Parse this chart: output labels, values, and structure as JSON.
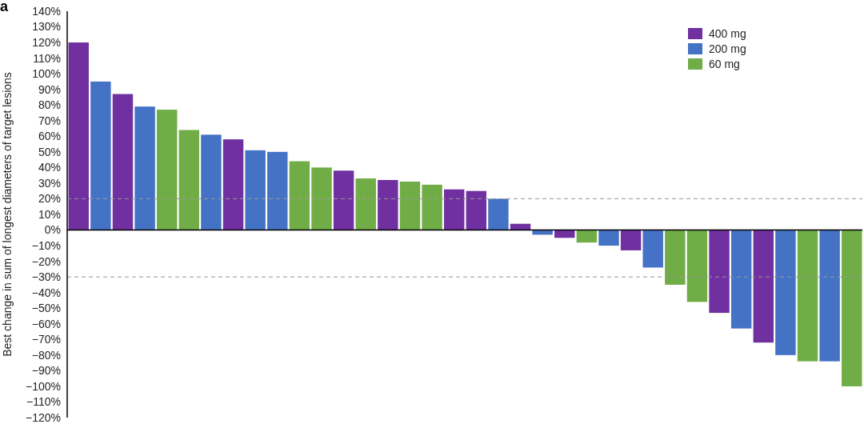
{
  "chart_data": {
    "type": "bar",
    "annotations": [
      "a"
    ],
    "ylabel": "Best change in sum of longest diameters of target lesions",
    "categories": [
      null,
      null,
      null,
      null,
      null,
      null,
      null,
      null,
      null,
      null,
      null,
      null,
      null,
      null,
      null,
      null,
      null,
      null,
      null,
      null,
      null,
      null,
      null,
      null,
      null,
      null,
      null,
      null,
      null,
      null,
      null,
      null,
      null,
      null,
      null,
      null
    ],
    "series": [
      {
        "name": "400 mg",
        "color": "#7030a0",
        "values": [
          120,
          null,
          87,
          null,
          null,
          null,
          null,
          58,
          null,
          null,
          null,
          null,
          38,
          null,
          32,
          null,
          null,
          26,
          25,
          null,
          4,
          null,
          -5,
          null,
          null,
          -13,
          null,
          null,
          null,
          -53,
          null,
          -72,
          null,
          null,
          null,
          null
        ]
      },
      {
        "name": "200 mg",
        "color": "#4472c4",
        "values": [
          null,
          95,
          null,
          79,
          null,
          null,
          61,
          null,
          51,
          50,
          null,
          null,
          null,
          null,
          null,
          null,
          null,
          null,
          null,
          20,
          null,
          -3,
          null,
          null,
          -10,
          null,
          -24,
          null,
          null,
          null,
          -63,
          null,
          -80,
          null,
          -84,
          null
        ]
      },
      {
        "name": "60 mg",
        "color": "#70ad47",
        "values": [
          null,
          null,
          null,
          null,
          77,
          64,
          null,
          null,
          null,
          null,
          44,
          40,
          null,
          33,
          null,
          31,
          29,
          null,
          null,
          null,
          null,
          null,
          null,
          -8,
          null,
          null,
          null,
          -35,
          -46,
          null,
          null,
          null,
          null,
          -84,
          null,
          -100
        ]
      }
    ],
    "ylim": [
      -120,
      140
    ],
    "yticks": [
      {
        "value": -120,
        "label": "−120%"
      },
      {
        "value": -110,
        "label": "−110%"
      },
      {
        "value": -100,
        "label": "−100%"
      },
      {
        "value": -90,
        "label": "−90%"
      },
      {
        "value": -80,
        "label": "−80%"
      },
      {
        "value": -70,
        "label": "−70%"
      },
      {
        "value": -60,
        "label": "−60%"
      },
      {
        "value": -50,
        "label": "−50%"
      },
      {
        "value": -40,
        "label": "−40%"
      },
      {
        "value": -30,
        "label": "−30%"
      },
      {
        "value": -20,
        "label": "−20%"
      },
      {
        "value": -10,
        "label": "−10%"
      },
      {
        "value": 0,
        "label": "0%"
      },
      {
        "value": 10,
        "label": "10%"
      },
      {
        "value": 20,
        "label": "20%"
      },
      {
        "value": 30,
        "label": "30%"
      },
      {
        "value": 40,
        "label": "40%"
      },
      {
        "value": 50,
        "label": "50%"
      },
      {
        "value": 60,
        "label": "60%"
      },
      {
        "value": 70,
        "label": "70%"
      },
      {
        "value": 80,
        "label": "80%"
      },
      {
        "value": 90,
        "label": "90%"
      },
      {
        "value": 100,
        "label": "100%"
      },
      {
        "value": 110,
        "label": "110%"
      },
      {
        "value": 120,
        "label": "120%"
      },
      {
        "value": 130,
        "label": "130%"
      },
      {
        "value": 140,
        "label": "140%"
      }
    ],
    "ref_lines": [
      {
        "axis": "y",
        "value": 20,
        "color": "#999999",
        "line_style": "dashed"
      },
      {
        "axis": "y",
        "value": -30,
        "color": "#999999",
        "line_style": "dashed"
      }
    ],
    "legend": "top right",
    "grid": false
  }
}
